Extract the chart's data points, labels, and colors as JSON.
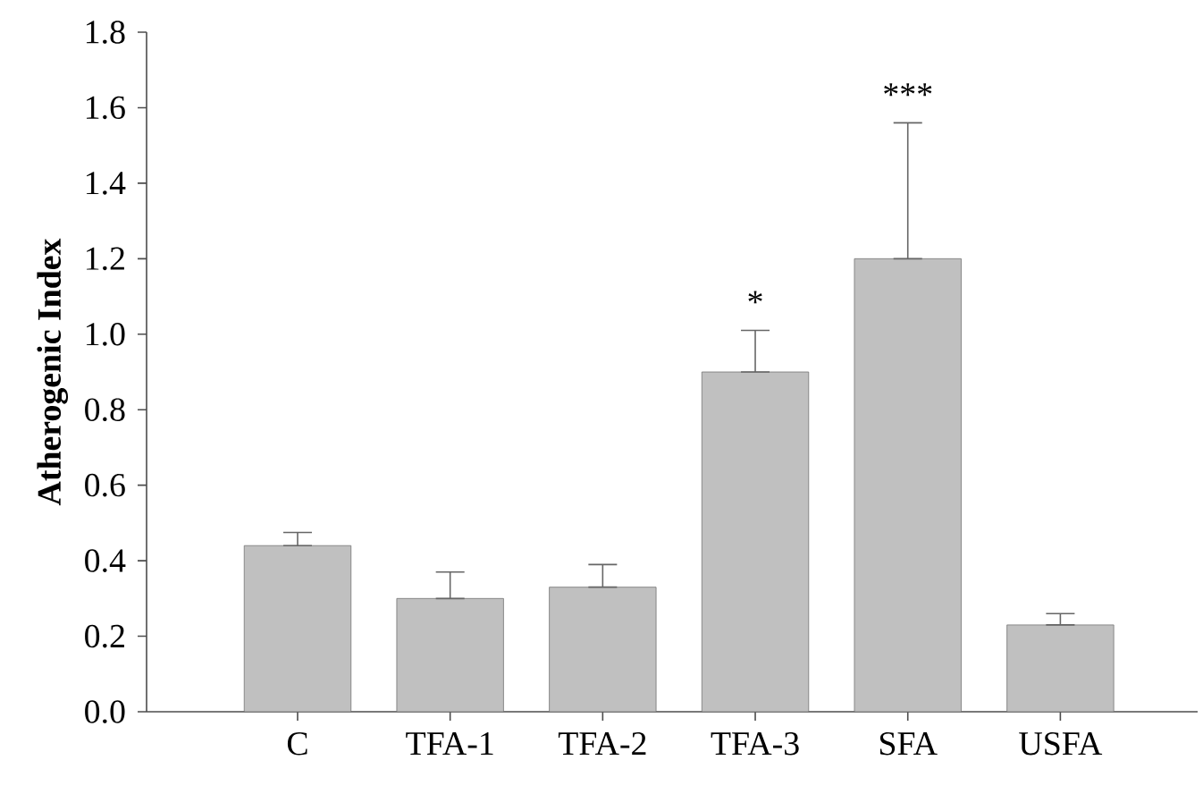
{
  "chart_data": {
    "type": "bar",
    "ylabel": "Atherogenic Index",
    "categories": [
      "C",
      "TFA-1",
      "TFA-2",
      "TFA-3",
      "SFA",
      "USFA"
    ],
    "values": [
      0.44,
      0.3,
      0.33,
      0.9,
      1.2,
      0.23
    ],
    "errors": [
      [
        0.44,
        0.475
      ],
      [
        0.3,
        0.37
      ],
      [
        0.33,
        0.39
      ],
      [
        0.9,
        1.01
      ],
      [
        1.2,
        1.56
      ],
      [
        0.23,
        0.26
      ]
    ],
    "color": "#c0c0c0",
    "ylim": [
      0,
      1.8
    ],
    "yticks": [
      {
        "value": 0,
        "label": "0.0"
      },
      {
        "value": 0.2,
        "label": "0.2"
      },
      {
        "value": 0.4,
        "label": "0.4"
      },
      {
        "value": 0.6,
        "label": "0.6"
      },
      {
        "value": 0.8,
        "label": "0.8"
      },
      {
        "value": 1.0,
        "label": "1.0"
      },
      {
        "value": 1.2,
        "label": "1.2"
      },
      {
        "value": 1.4,
        "label": "1.4"
      },
      {
        "value": 1.6,
        "label": "1.6"
      },
      {
        "value": 1.8,
        "label": "1.8"
      }
    ],
    "annotations": [
      "*",
      "***"
    ]
  }
}
